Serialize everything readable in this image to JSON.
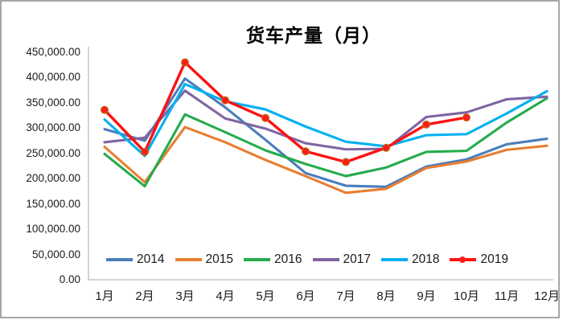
{
  "frame": {
    "background": "#ffffff",
    "border_color": "#8f8f8f",
    "axis_color": "#c6c6c6",
    "text_color": "#1a1a1a"
  },
  "chart_data": {
    "type": "line",
    "title": "货车产量（月）",
    "xlabel": "",
    "ylabel": "",
    "grid": false,
    "legend_position": "bottom-inside",
    "x_categories": [
      "1月",
      "2月",
      "3月",
      "4月",
      "5月",
      "6月",
      "7月",
      "8月",
      "9月",
      "10月",
      "11月",
      "12月"
    ],
    "y_axis": {
      "min": 0,
      "max": 450000,
      "step": 50000,
      "tick_labels": [
        "0.00",
        "50,000.00",
        "100,000.00",
        "150,000.00",
        "200,000.00",
        "250,000.00",
        "300,000.00",
        "350,000.00",
        "400,000.00",
        "450,000.00"
      ]
    },
    "series": [
      {
        "name": "2014",
        "color": "#4A7EBB",
        "markers": false,
        "values": [
          298000,
          275000,
          398000,
          341000,
          277000,
          211000,
          186000,
          184000,
          224000,
          238000,
          268000,
          279000
        ]
      },
      {
        "name": "2015",
        "color": "#E97E30",
        "markers": false,
        "values": [
          263000,
          193000,
          302000,
          272000,
          237000,
          205000,
          172000,
          180000,
          221000,
          234000,
          257000,
          265000
        ]
      },
      {
        "name": "2016",
        "color": "#24AC4C",
        "markers": false,
        "values": [
          249000,
          185000,
          327000,
          292000,
          256000,
          229000,
          205000,
          222000,
          253000,
          255000,
          311000,
          359000
        ]
      },
      {
        "name": "2017",
        "color": "#8064A2",
        "markers": false,
        "values": [
          272000,
          281000,
          374000,
          319000,
          299000,
          270000,
          258000,
          259000,
          322000,
          331000,
          357000,
          362000
        ]
      },
      {
        "name": "2018",
        "color": "#00B0F0",
        "markers": false,
        "values": [
          317000,
          245000,
          387000,
          353000,
          337000,
          303000,
          273000,
          264000,
          286000,
          288000,
          329000,
          373000
        ]
      },
      {
        "name": "2019",
        "color": "#FF1111",
        "markers": true,
        "marker_fill": "#FF1A1A",
        "marker_ring": "#C55A11",
        "values": [
          336000,
          253000,
          430000,
          355000,
          320000,
          254000,
          233000,
          261000,
          307000,
          321000,
          null,
          null
        ]
      }
    ]
  }
}
